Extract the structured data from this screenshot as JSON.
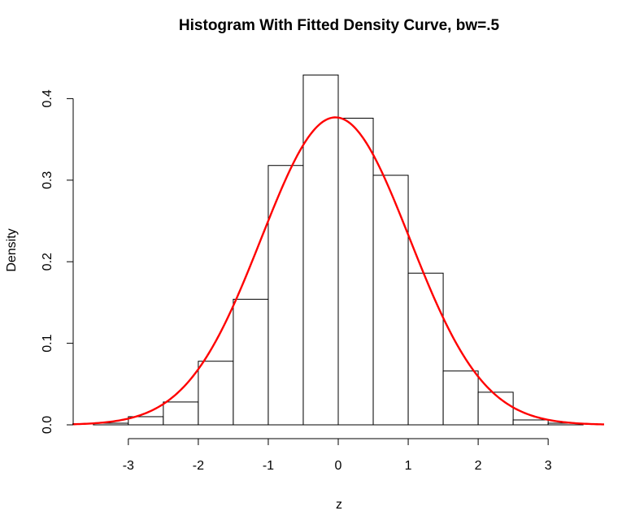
{
  "chart_data": {
    "type": "bar",
    "title": "Histogram With Fitted Density Curve, bw=.5",
    "xlabel": "z",
    "ylabel": "Density",
    "x_ticks": [
      "-3",
      "-2",
      "-1",
      "0",
      "1",
      "2",
      "3"
    ],
    "x_tick_values": [
      -3,
      -2,
      -1,
      0,
      1,
      2,
      3
    ],
    "y_ticks": [
      "0.0",
      "0.1",
      "0.2",
      "0.3",
      "0.4"
    ],
    "y_tick_values": [
      0,
      0.1,
      0.2,
      0.3,
      0.4
    ],
    "xlim": [
      -3.8,
      3.8
    ],
    "ylim": [
      0,
      0.43
    ],
    "grid": false,
    "bins": [
      {
        "start": -3.5,
        "end": -3.0,
        "density": 0.002
      },
      {
        "start": -3.0,
        "end": -2.5,
        "density": 0.01
      },
      {
        "start": -2.5,
        "end": -2.0,
        "density": 0.028
      },
      {
        "start": -2.0,
        "end": -1.5,
        "density": 0.078
      },
      {
        "start": -1.5,
        "end": -1.0,
        "density": 0.154
      },
      {
        "start": -1.0,
        "end": -0.5,
        "density": 0.318
      },
      {
        "start": -0.5,
        "end": 0.0,
        "density": 0.429
      },
      {
        "start": 0.0,
        "end": 0.5,
        "density": 0.376
      },
      {
        "start": 0.5,
        "end": 1.0,
        "density": 0.306
      },
      {
        "start": 1.0,
        "end": 1.5,
        "density": 0.186
      },
      {
        "start": 1.5,
        "end": 2.0,
        "density": 0.066
      },
      {
        "start": 2.0,
        "end": 2.5,
        "density": 0.04
      },
      {
        "start": 2.5,
        "end": 3.0,
        "density": 0.006
      },
      {
        "start": 3.0,
        "end": 3.5,
        "density": 0.002
      }
    ],
    "density_curve": {
      "type": "line",
      "color": "#ff0000",
      "mean": -0.04,
      "sd": 1.06,
      "peak": 0.377,
      "x_range": [
        -3.8,
        3.8
      ]
    },
    "bar_fill": "#ffffff",
    "bar_stroke": "#000000"
  }
}
